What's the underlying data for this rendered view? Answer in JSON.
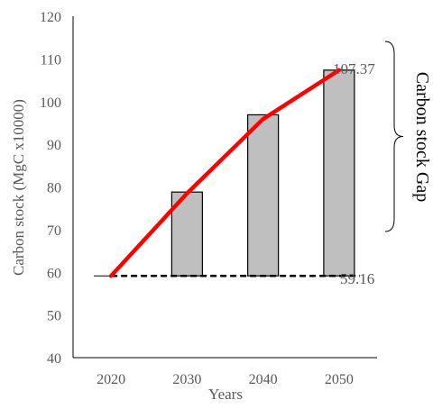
{
  "chart_data": {
    "type": "bar",
    "categories": [
      "2020",
      "2030",
      "2040",
      "2050"
    ],
    "bar_range": {
      "name": "",
      "bottom": [
        null,
        59.16,
        59.16,
        59.16
      ],
      "top": [
        null,
        78.8,
        96.9,
        107.37
      ]
    },
    "line": {
      "name": "",
      "values": [
        59.16,
        78.5,
        95.9,
        107.37
      ]
    },
    "baseline": 59.16,
    "xlabel": "Years",
    "ylabel": "Carbon stock (MgC x10000)",
    "ylim": [
      40,
      120
    ],
    "yticks": [
      "40",
      "50",
      "60",
      "70",
      "80",
      "90",
      "100",
      "110",
      "120"
    ],
    "annotations": {
      "top_value": "107.37",
      "base_value": "59.16",
      "gap_label": "Carbon stock Gap"
    },
    "grid": false,
    "colors": {
      "bar_fill": "#bfbfbf",
      "bar_stroke": "#000000",
      "line": "#ff0000",
      "baseline": "#000000",
      "axis": "#000000",
      "text": "#595959"
    }
  }
}
